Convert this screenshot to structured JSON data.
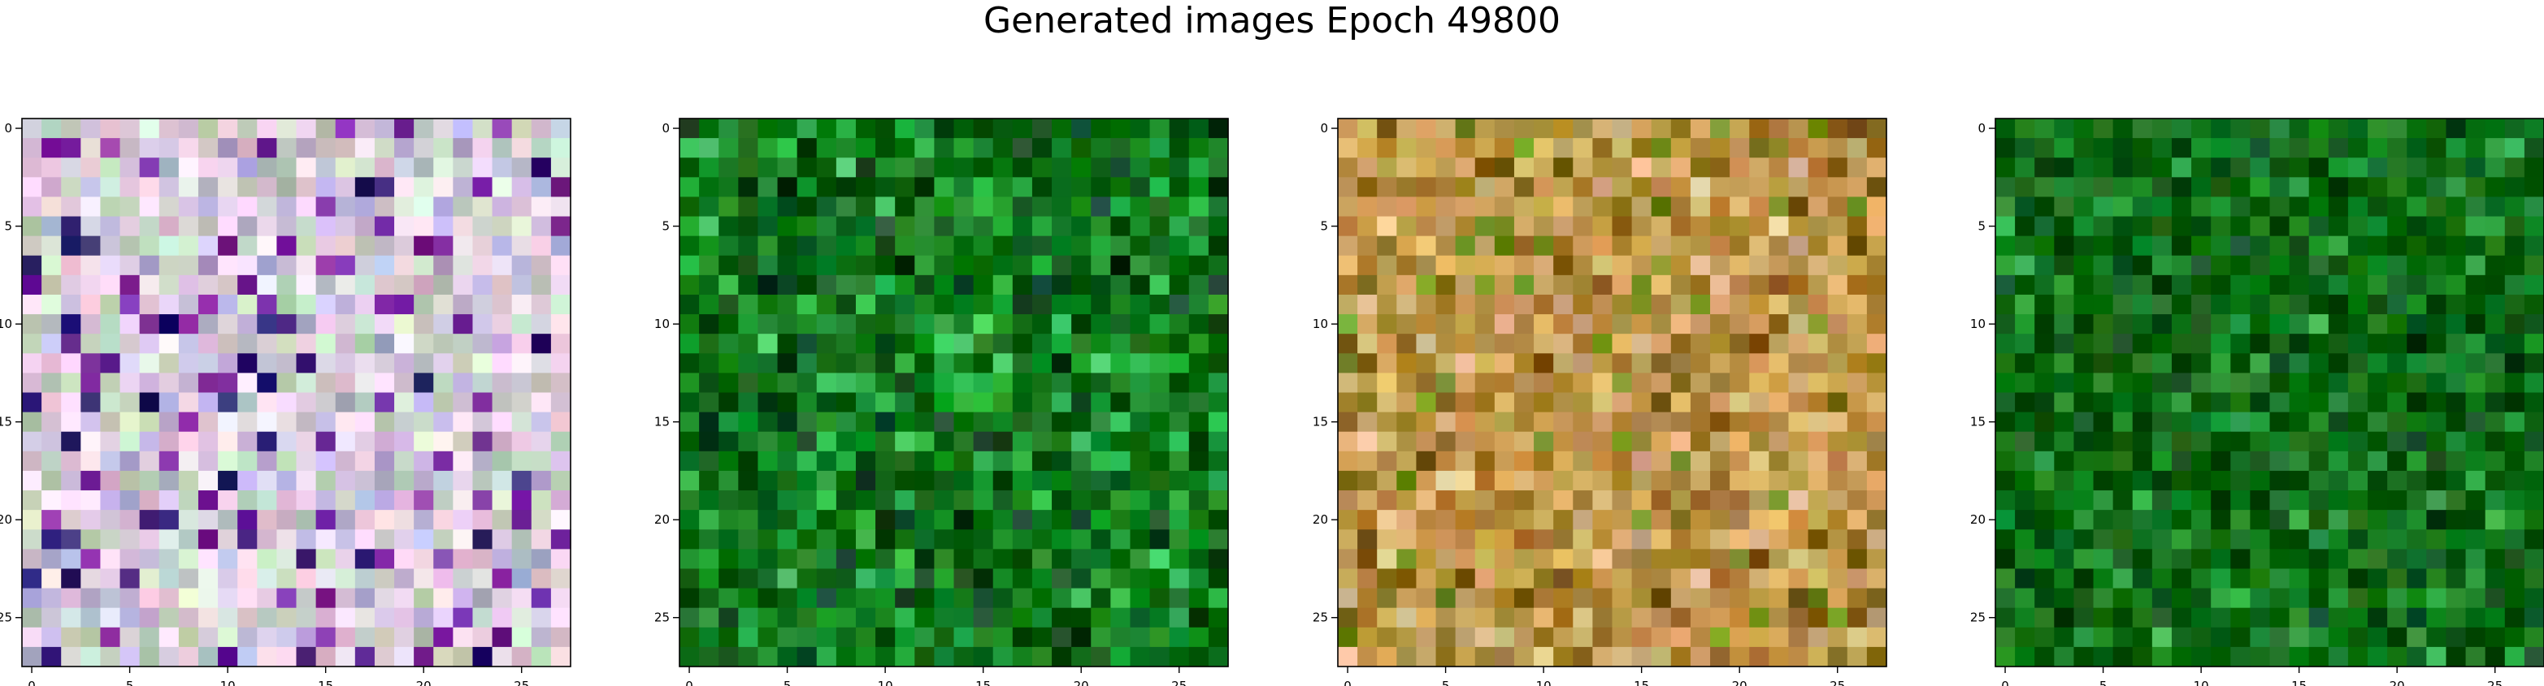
{
  "figure_title": "Generated images Epoch 49800",
  "chart_data": [
    {
      "type": "heatmap",
      "title": "",
      "grid_size": [
        28,
        28
      ],
      "x_ticks": [
        "0",
        "5",
        "10",
        "15",
        "20",
        "25"
      ],
      "y_ticks": [
        "0",
        "5",
        "10",
        "15",
        "20",
        "25"
      ],
      "dominant_colors": [
        "#e6cfe3",
        "#c9d9c8",
        "#b9b3d9",
        "#7a2aa0",
        "#2b1b6e"
      ],
      "palette_description": "pastel noise"
    },
    {
      "type": "heatmap",
      "title": "",
      "grid_size": [
        28,
        28
      ],
      "x_ticks": [
        "0",
        "5",
        "10",
        "15",
        "20",
        "25"
      ],
      "y_ticks": [
        "0",
        "5",
        "10",
        "15",
        "20",
        "25"
      ],
      "dominant_colors": [
        "#0f7a1a",
        "#0a5e12",
        "#1fa335",
        "#0d3f1c",
        "#3cbf5a"
      ],
      "palette_description": "green noise"
    },
    {
      "type": "heatmap",
      "title": "",
      "grid_size": [
        28,
        28
      ],
      "x_ticks": [
        "0",
        "5",
        "10",
        "15",
        "20",
        "25"
      ],
      "y_ticks": [
        "0",
        "5",
        "10",
        "15",
        "20",
        "25"
      ],
      "dominant_colors": [
        "#c9a15a",
        "#b58a3a",
        "#8c6a1f",
        "#d9b98a",
        "#6b8a1a"
      ],
      "palette_description": "warm tan noise"
    },
    {
      "type": "heatmap",
      "title": "",
      "grid_size": [
        28,
        28
      ],
      "x_ticks": [
        "0",
        "5",
        "10",
        "15",
        "20",
        "25"
      ],
      "y_ticks": [
        "0",
        "5",
        "10",
        "15",
        "20",
        "25"
      ],
      "dominant_colors": [
        "#0e6e14",
        "#0b5a10",
        "#1a8a2a",
        "#0a4a18",
        "#2aa040"
      ],
      "palette_description": "dark green noise"
    }
  ]
}
